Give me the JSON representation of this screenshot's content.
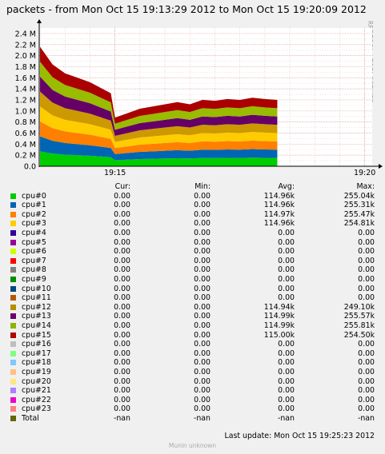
{
  "title": "packets - from Mon Oct 15 19:13:29 2012 to Mon Oct 15 19:20:09 2012",
  "vendor": "RRDTOOL / TOBI OETIKER",
  "chart_data": {
    "type": "area",
    "title": "packets - from Mon Oct 15 19:13:29 2012 to Mon Oct 15 19:20:09 2012",
    "ylim": [
      0,
      2500000
    ],
    "ytick_values": [
      0,
      200000,
      400000,
      600000,
      800000,
      1000000,
      1200000,
      1400000,
      1600000,
      1800000,
      2000000,
      2200000,
      2400000
    ],
    "ytick_labels": [
      "0.0",
      "0.2 M",
      "0.4 M",
      "0.6 M",
      "0.8 M",
      "1.0 M",
      "1.2 M",
      "1.4 M",
      "1.6 M",
      "1.8 M",
      "2.0 M",
      "2.2 M",
      "2.4 M"
    ],
    "xlim": [
      "19:13:29",
      "19:20:09"
    ],
    "xtick_labels": [
      "19:15",
      "19:20"
    ],
    "grid": true,
    "x": [
      "19:13:30",
      "19:13:45",
      "19:14:00",
      "19:14:15",
      "19:14:30",
      "19:14:45",
      "19:14:55",
      "19:15:00",
      "19:15:15",
      "19:15:30",
      "19:15:45",
      "19:16:00",
      "19:16:15",
      "19:16:30",
      "19:16:45",
      "19:17:00",
      "19:17:15",
      "19:17:30",
      "19:17:45",
      "19:18:00",
      "19:18:15"
    ],
    "series": [
      {
        "name": "cpu#0",
        "color": "#00cc00",
        "values": [
          270000,
          230000,
          210000,
          200000,
          190000,
          175000,
          165000,
          110000,
          120000,
          130000,
          135000,
          140000,
          145000,
          140000,
          150000,
          148000,
          152000,
          150000,
          155000,
          152000,
          150000
        ]
      },
      {
        "name": "cpu#1",
        "color": "#0066b3",
        "values": [
          270000,
          230000,
          210000,
          200000,
          190000,
          175000,
          165000,
          110000,
          120000,
          130000,
          135000,
          140000,
          145000,
          140000,
          150000,
          148000,
          152000,
          150000,
          155000,
          152000,
          150000
        ]
      },
      {
        "name": "cpu#2",
        "color": "#ff8000",
        "values": [
          270000,
          230000,
          210000,
          200000,
          190000,
          175000,
          165000,
          110000,
          120000,
          130000,
          135000,
          140000,
          145000,
          140000,
          150000,
          148000,
          152000,
          150000,
          155000,
          152000,
          150000
        ]
      },
      {
        "name": "cpu#3",
        "color": "#ffcc00",
        "values": [
          270000,
          230000,
          210000,
          200000,
          190000,
          175000,
          165000,
          110000,
          120000,
          130000,
          135000,
          140000,
          145000,
          140000,
          150000,
          148000,
          152000,
          150000,
          155000,
          152000,
          150000
        ]
      },
      {
        "name": "cpu#12",
        "color": "#cc9900",
        "values": [
          270000,
          230000,
          210000,
          200000,
          190000,
          175000,
          165000,
          110000,
          120000,
          130000,
          135000,
          140000,
          145000,
          140000,
          150000,
          148000,
          152000,
          150000,
          155000,
          152000,
          150000
        ]
      },
      {
        "name": "cpu#13",
        "color": "#660066",
        "values": [
          270000,
          230000,
          210000,
          200000,
          190000,
          175000,
          165000,
          110000,
          120000,
          130000,
          135000,
          140000,
          145000,
          140000,
          150000,
          148000,
          152000,
          150000,
          155000,
          152000,
          150000
        ]
      },
      {
        "name": "cpu#14",
        "color": "#99bb00",
        "values": [
          270000,
          230000,
          210000,
          200000,
          190000,
          175000,
          165000,
          110000,
          120000,
          130000,
          135000,
          140000,
          145000,
          140000,
          150000,
          148000,
          152000,
          150000,
          155000,
          152000,
          150000
        ]
      },
      {
        "name": "cpu#15",
        "color": "#aa0000",
        "values": [
          270000,
          230000,
          210000,
          200000,
          190000,
          175000,
          165000,
          110000,
          120000,
          130000,
          135000,
          140000,
          145000,
          140000,
          150000,
          148000,
          152000,
          150000,
          155000,
          152000,
          150000
        ]
      }
    ]
  },
  "legend": {
    "headers": {
      "cur": "Cur:",
      "min": "Min:",
      "avg": "Avg:",
      "max": "Max:"
    },
    "rows": [
      {
        "name": "cpu#0",
        "color": "#00cc00",
        "cur": "0.00",
        "min": "0.00",
        "avg": "114.96k",
        "max": "255.04k"
      },
      {
        "name": "cpu#1",
        "color": "#0066b3",
        "cur": "0.00",
        "min": "0.00",
        "avg": "114.96k",
        "max": "255.31k"
      },
      {
        "name": "cpu#2",
        "color": "#ff8000",
        "cur": "0.00",
        "min": "0.00",
        "avg": "114.97k",
        "max": "255.47k"
      },
      {
        "name": "cpu#3",
        "color": "#ffcc00",
        "cur": "0.00",
        "min": "0.00",
        "avg": "114.96k",
        "max": "254.81k"
      },
      {
        "name": "cpu#4",
        "color": "#330099",
        "cur": "0.00",
        "min": "0.00",
        "avg": "0.00",
        "max": "0.00"
      },
      {
        "name": "cpu#5",
        "color": "#990099",
        "cur": "0.00",
        "min": "0.00",
        "avg": "0.00",
        "max": "0.00"
      },
      {
        "name": "cpu#6",
        "color": "#ccff00",
        "cur": "0.00",
        "min": "0.00",
        "avg": "0.00",
        "max": "0.00"
      },
      {
        "name": "cpu#7",
        "color": "#ff0000",
        "cur": "0.00",
        "min": "0.00",
        "avg": "0.00",
        "max": "0.00"
      },
      {
        "name": "cpu#8",
        "color": "#808080",
        "cur": "0.00",
        "min": "0.00",
        "avg": "0.00",
        "max": "0.00"
      },
      {
        "name": "cpu#9",
        "color": "#008f00",
        "cur": "0.00",
        "min": "0.00",
        "avg": "0.00",
        "max": "0.00"
      },
      {
        "name": "cpu#10",
        "color": "#00487d",
        "cur": "0.00",
        "min": "0.00",
        "avg": "0.00",
        "max": "0.00"
      },
      {
        "name": "cpu#11",
        "color": "#b35a00",
        "cur": "0.00",
        "min": "0.00",
        "avg": "0.00",
        "max": "0.00"
      },
      {
        "name": "cpu#12",
        "color": "#b38f00",
        "cur": "0.00",
        "min": "0.00",
        "avg": "114.94k",
        "max": "249.10k"
      },
      {
        "name": "cpu#13",
        "color": "#6b006b",
        "cur": "0.00",
        "min": "0.00",
        "avg": "114.99k",
        "max": "255.57k"
      },
      {
        "name": "cpu#14",
        "color": "#8fb300",
        "cur": "0.00",
        "min": "0.00",
        "avg": "114.99k",
        "max": "255.81k"
      },
      {
        "name": "cpu#15",
        "color": "#b30000",
        "cur": "0.00",
        "min": "0.00",
        "avg": "115.00k",
        "max": "254.50k"
      },
      {
        "name": "cpu#16",
        "color": "#bebebe",
        "cur": "0.00",
        "min": "0.00",
        "avg": "0.00",
        "max": "0.00"
      },
      {
        "name": "cpu#17",
        "color": "#80ff80",
        "cur": "0.00",
        "min": "0.00",
        "avg": "0.00",
        "max": "0.00"
      },
      {
        "name": "cpu#18",
        "color": "#80c9ff",
        "cur": "0.00",
        "min": "0.00",
        "avg": "0.00",
        "max": "0.00"
      },
      {
        "name": "cpu#19",
        "color": "#ffc080",
        "cur": "0.00",
        "min": "0.00",
        "avg": "0.00",
        "max": "0.00"
      },
      {
        "name": "cpu#20",
        "color": "#ffe680",
        "cur": "0.00",
        "min": "0.00",
        "avg": "0.00",
        "max": "0.00"
      },
      {
        "name": "cpu#21",
        "color": "#aa80ff",
        "cur": "0.00",
        "min": "0.00",
        "avg": "0.00",
        "max": "0.00"
      },
      {
        "name": "cpu#22",
        "color": "#ee00cc",
        "cur": "0.00",
        "min": "0.00",
        "avg": "0.00",
        "max": "0.00"
      },
      {
        "name": "cpu#23",
        "color": "#ff8080",
        "cur": "0.00",
        "min": "0.00",
        "avg": "0.00",
        "max": "0.00"
      },
      {
        "name": "Total",
        "color": "#666600",
        "cur": "-nan",
        "min": "-nan",
        "avg": "-nan",
        "max": "-nan"
      }
    ]
  },
  "footer": "Last update:  Mon Oct 15 19:25:23 2012",
  "credit": "Munin unknown"
}
